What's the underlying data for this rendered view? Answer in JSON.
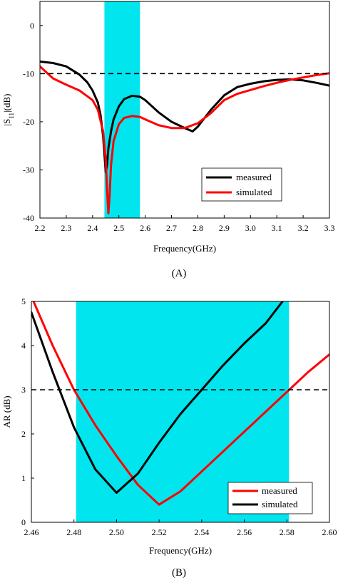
{
  "chart_data": [
    {
      "type": "line",
      "caption": "(A)",
      "xlabel": "Frequency(GHz)",
      "ylabel_main": "|S",
      "ylabel_sub": "11",
      "ylabel_tail": "|(dB)",
      "xlim": [
        2.2,
        3.3
      ],
      "ylim": [
        -40,
        5
      ],
      "xticks": [
        2.2,
        2.3,
        2.4,
        2.5,
        2.6,
        2.7,
        2.8,
        2.9,
        3.0,
        3.1,
        3.2,
        3.3
      ],
      "xtick_labels": [
        "2.2",
        "2.3",
        "2.4",
        "2.5",
        "2.6",
        "2.7",
        "2.8",
        "2.9",
        "3.0",
        "3.1",
        "3.2",
        "3.3"
      ],
      "yticks": [
        0,
        -10,
        -20,
        -30,
        -40
      ],
      "ytick_labels": [
        "0",
        "-10",
        "-20",
        "-30",
        "-40"
      ],
      "band": {
        "x": [
          2.445,
          2.58
        ],
        "color": "#00e5ee"
      },
      "reference_line": {
        "y": -10,
        "style": "dashed"
      },
      "legend_position": "bottom-right",
      "series": [
        {
          "name": "measured",
          "color": "#000000",
          "x": [
            2.2,
            2.25,
            2.3,
            2.35,
            2.38,
            2.4,
            2.42,
            2.43,
            2.44,
            2.45,
            2.455,
            2.46,
            2.47,
            2.48,
            2.5,
            2.52,
            2.55,
            2.58,
            2.6,
            2.62,
            2.65,
            2.7,
            2.75,
            2.78,
            2.8,
            2.85,
            2.9,
            2.95,
            3.0,
            3.05,
            3.1,
            3.15,
            3.2,
            3.25,
            3.3
          ],
          "y": [
            -7.5,
            -7.8,
            -8.5,
            -10.2,
            -11.8,
            -13.5,
            -16,
            -18.5,
            -23,
            -30.5,
            -29,
            -25.5,
            -22,
            -19.5,
            -16.8,
            -15.3,
            -14.6,
            -14.8,
            -15.5,
            -16.5,
            -18,
            -20,
            -21.3,
            -22,
            -21,
            -17.5,
            -14.5,
            -12.8,
            -12.1,
            -11.6,
            -11.3,
            -11.2,
            -11.4,
            -11.9,
            -12.5
          ]
        },
        {
          "name": "simulated",
          "color": "#ff0000",
          "x": [
            2.2,
            2.25,
            2.3,
            2.35,
            2.4,
            2.42,
            2.44,
            2.45,
            2.455,
            2.46,
            2.465,
            2.47,
            2.48,
            2.5,
            2.52,
            2.55,
            2.58,
            2.6,
            2.65,
            2.7,
            2.75,
            2.8,
            2.85,
            2.9,
            2.95,
            3.0,
            3.05,
            3.1,
            3.15,
            3.2,
            3.25,
            3.3
          ],
          "y": [
            -8.5,
            -11,
            -12.3,
            -13.5,
            -15.5,
            -17.5,
            -22,
            -28,
            -34,
            -39,
            -35,
            -29,
            -24,
            -20.5,
            -19.2,
            -18.8,
            -19,
            -19.5,
            -20.7,
            -21.3,
            -21.3,
            -20.3,
            -18.2,
            -15.5,
            -14.2,
            -13.4,
            -12.6,
            -11.9,
            -11.3,
            -10.8,
            -10.3,
            -9.9
          ]
        }
      ]
    },
    {
      "type": "line",
      "caption": "(B)",
      "xlabel": "Frequency(GHz)",
      "ylabel": "AR  (dB)",
      "xlim": [
        2.46,
        2.6
      ],
      "ylim": [
        0,
        5
      ],
      "xticks": [
        2.46,
        2.48,
        2.5,
        2.52,
        2.54,
        2.56,
        2.58,
        2.6
      ],
      "xtick_labels": [
        "2.46",
        "2.48",
        "2.50",
        "2.52",
        "2.54",
        "2.56",
        "2.58",
        "2.60"
      ],
      "yticks": [
        0,
        1,
        2,
        3,
        4,
        5
      ],
      "ytick_labels": [
        "0",
        "1",
        "2",
        "3",
        "4",
        "5"
      ],
      "band": {
        "x": [
          2.481,
          2.581
        ],
        "color": "#00e5ee"
      },
      "reference_line": {
        "y": 3,
        "style": "dashed"
      },
      "legend_position": "bottom-right",
      "series": [
        {
          "name": "measured",
          "color": "#ff0000",
          "x": [
            2.461,
            2.47,
            2.48,
            2.49,
            2.5,
            2.51,
            2.52,
            2.53,
            2.54,
            2.55,
            2.56,
            2.57,
            2.58,
            2.59,
            2.6
          ],
          "y": [
            5.0,
            4.0,
            3.0,
            2.2,
            1.5,
            0.85,
            0.4,
            0.7,
            1.15,
            1.6,
            2.05,
            2.5,
            2.95,
            3.4,
            3.8
          ]
        },
        {
          "name": "simulated",
          "color": "#000000",
          "x": [
            2.46,
            2.47,
            2.48,
            2.49,
            2.5,
            2.51,
            2.52,
            2.53,
            2.54,
            2.55,
            2.56,
            2.57,
            2.578
          ],
          "y": [
            4.75,
            3.4,
            2.15,
            1.2,
            0.67,
            1.1,
            1.8,
            2.45,
            3.0,
            3.55,
            4.05,
            4.5,
            5.0
          ]
        }
      ]
    }
  ]
}
